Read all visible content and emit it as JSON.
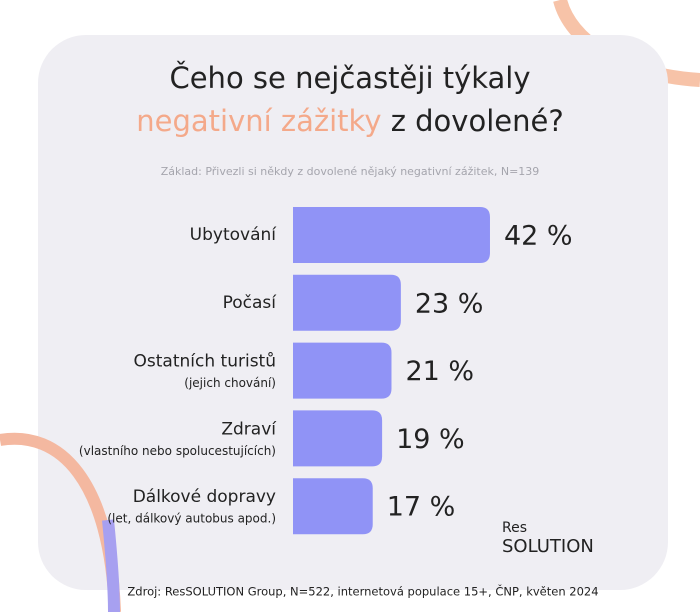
{
  "chart_data": {
    "type": "bar",
    "orientation": "horizontal",
    "title": [
      "Čeho se nejčastěji týkaly",
      "negativní zážitky",
      "z dovolené?"
    ],
    "title_highlight_color": "#f4a98a",
    "subtitle": "Základ: Přivezli si někdy z dovolené nějaký negativní zážitek, N=139",
    "categories": [
      "Ubytování",
      "Počasí",
      "Ostatních turistů",
      "Zdraví",
      "Dálkové dopravy"
    ],
    "category_notes": [
      null,
      null,
      "(jejich chování)",
      "(vlastního nebo spolucestujících)",
      "(let, dálkový autobus apod.)"
    ],
    "values": [
      42,
      23,
      21,
      19,
      17
    ],
    "value_labels": [
      "42 %",
      "23 %",
      "21 %",
      "19 %",
      "17 %"
    ],
    "color": "#9093f6",
    "source": "Zdroj: ResSOLUTION Group, N=522, internetová populace 15+, ČNP, květen 2024",
    "logo": [
      "Res",
      "SOLUTION"
    ]
  }
}
